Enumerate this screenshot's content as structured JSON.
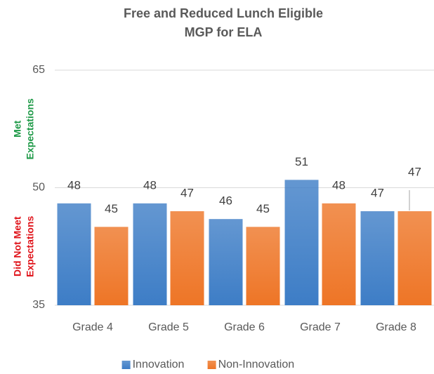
{
  "chart_data": {
    "type": "bar",
    "title": "Free and Reduced Lunch Eligible",
    "subtitle": "MGP for ELA",
    "categories": [
      "Grade 4",
      "Grade 5",
      "Grade 6",
      "Grade 7",
      "Grade 8"
    ],
    "series": [
      {
        "name": "Innovation",
        "color": "#3d7dc6",
        "values": [
          48,
          48,
          46,
          51,
          47
        ]
      },
      {
        "name": "Non-Innovation",
        "color": "#ee7526",
        "values": [
          45,
          47,
          45,
          48,
          47
        ]
      }
    ],
    "ylim": [
      35,
      65
    ],
    "yticks": [
      35,
      50,
      65
    ],
    "grid": true,
    "legend": "bottom",
    "annotations": [
      {
        "text": [
          "Met",
          "Expectations"
        ],
        "color": "#1f9a48"
      },
      {
        "text": [
          "Did Not Meet",
          "Expectations"
        ],
        "color": "#e0141b"
      }
    ]
  }
}
